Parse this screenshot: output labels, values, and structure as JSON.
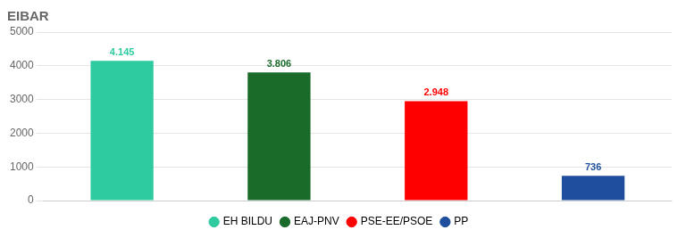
{
  "chart_data": {
    "type": "bar",
    "title": "EIBAR",
    "categories": [
      "EH BILDU",
      "EAJ-PNV",
      "PSE-EE/PSOE",
      "PP"
    ],
    "values": [
      4145,
      3806,
      2948,
      736
    ],
    "value_labels": [
      "4.145",
      "3.806",
      "2.948",
      "736"
    ],
    "colors": [
      "#2ecba1",
      "#1a6b2a",
      "#ff0000",
      "#1f4e9e"
    ],
    "ylim": [
      0,
      5000
    ],
    "yticks": [
      0,
      1000,
      2000,
      3000,
      4000,
      5000
    ],
    "grid": true,
    "legend": "bottom",
    "data_labels": true,
    "tick_labels": "y"
  }
}
